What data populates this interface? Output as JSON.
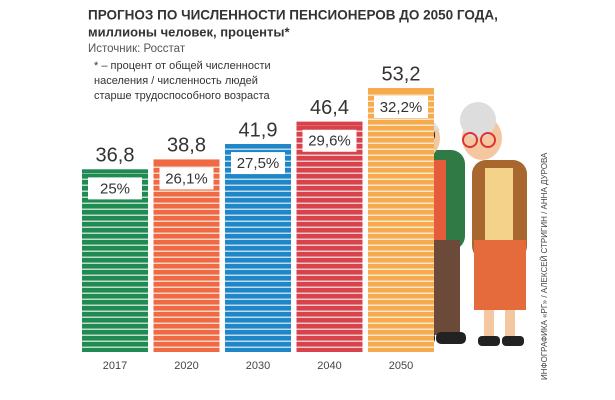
{
  "chart_data": {
    "type": "bar",
    "title": "ПРОГНОЗ ПО ЧИСЛЕННОСТИ ПЕНСИОНЕРОВ ДО 2050 ГОДА,",
    "subtitle": "миллионы человек, проценты*",
    "source": "Источник: Росстат",
    "footnote": [
      "* – процент от общей численности",
      "населения / численность людей",
      "старше трудоспособного возраста"
    ],
    "credit": "ИНФОГРАФИКА «РГ» / АЛЕКСЕЙ СТРИГИН / АННА ДУРОВА",
    "categories": [
      "2017",
      "2020",
      "2030",
      "2040",
      "2050"
    ],
    "values": [
      36.8,
      38.8,
      41.9,
      46.4,
      53.2
    ],
    "value_labels": [
      "36,8",
      "38,8",
      "41,9",
      "46,4",
      "53,2"
    ],
    "percent_values": [
      25,
      26.1,
      27.5,
      29.6,
      32.2
    ],
    "percent_labels": [
      "25%",
      "26,1%",
      "27,5%",
      "29,6%",
      "32,2%"
    ],
    "colors": [
      "#1f8a52",
      "#ef6a42",
      "#1f86c8",
      "#d7424b",
      "#f6ab4f"
    ]
  }
}
